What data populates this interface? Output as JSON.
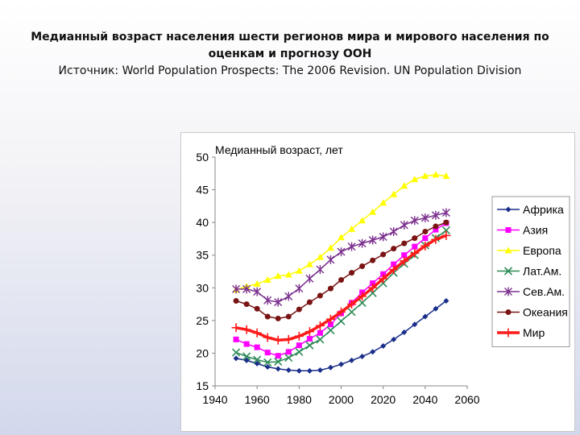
{
  "slide": {
    "title": "Медианный возраст населения шести регионов мира и мирового населения по оценкам и прогнозу ООН",
    "source": "Источник: World Population Prospects: The 2006 Revision. UN Population Division"
  },
  "chart_data": {
    "type": "line",
    "title": "Медианный возраст, лет",
    "xlabel": "",
    "ylabel": "",
    "xlim": [
      1940,
      2060
    ],
    "ylim": [
      15,
      50
    ],
    "xticks": [
      1940,
      1960,
      1980,
      2000,
      2020,
      2040,
      2060
    ],
    "yticks": [
      15,
      20,
      25,
      30,
      35,
      40,
      45,
      50
    ],
    "grid": false,
    "legend_position": "right",
    "x": [
      1950,
      1955,
      1960,
      1965,
      1970,
      1975,
      1980,
      1985,
      1990,
      1995,
      2000,
      2005,
      2010,
      2015,
      2020,
      2025,
      2030,
      2035,
      2040,
      2045,
      2050
    ],
    "series": [
      {
        "name": "Африка",
        "color": "#1a2e8a",
        "marker": "diamond",
        "values": [
          19.2,
          18.9,
          18.4,
          17.9,
          17.6,
          17.4,
          17.3,
          17.3,
          17.4,
          17.8,
          18.3,
          18.9,
          19.5,
          20.2,
          21.1,
          22.1,
          23.2,
          24.4,
          25.6,
          26.8,
          28.0
        ]
      },
      {
        "name": "Азия",
        "color": "#ff00ff",
        "marker": "square",
        "values": [
          22.1,
          21.4,
          20.9,
          20.1,
          19.6,
          20.2,
          21.2,
          22.2,
          23.1,
          24.4,
          26.1,
          27.7,
          29.3,
          30.7,
          32.1,
          33.6,
          35.0,
          36.3,
          37.6,
          38.9,
          39.9
        ]
      },
      {
        "name": "Европа",
        "color": "#ffff00",
        "marker": "triangle",
        "values": [
          29.7,
          30.2,
          30.6,
          31.2,
          31.8,
          32.0,
          32.6,
          33.6,
          34.7,
          36.1,
          37.7,
          39.0,
          40.3,
          41.6,
          43.0,
          44.3,
          45.6,
          46.6,
          47.1,
          47.3,
          47.1
        ]
      },
      {
        "name": "Лат.Ам.",
        "color": "#2e8b57",
        "marker": "x",
        "values": [
          20.1,
          19.5,
          19.0,
          18.6,
          18.7,
          19.3,
          20.2,
          21.2,
          22.1,
          23.5,
          24.9,
          26.3,
          27.7,
          29.2,
          30.7,
          32.3,
          33.7,
          35.0,
          36.5,
          37.6,
          38.8
        ]
      },
      {
        "name": "Сев.Ам.",
        "color": "#7b2f8e",
        "marker": "star",
        "values": [
          29.8,
          29.8,
          29.4,
          28.1,
          27.8,
          28.7,
          29.9,
          31.4,
          32.8,
          34.3,
          35.5,
          36.3,
          36.8,
          37.3,
          37.8,
          38.6,
          39.6,
          40.3,
          40.7,
          41.1,
          41.5
        ]
      },
      {
        "name": "Океания",
        "color": "#7a1414",
        "marker": "circle",
        "values": [
          28.0,
          27.5,
          26.8,
          25.6,
          25.3,
          25.6,
          26.7,
          27.8,
          28.8,
          29.9,
          31.2,
          32.3,
          33.3,
          34.2,
          35.1,
          36.0,
          36.8,
          37.6,
          38.6,
          39.4,
          40.0
        ]
      },
      {
        "name": "Мир",
        "color": "#ff1a1a",
        "marker": "plus",
        "values": [
          23.9,
          23.6,
          23.1,
          22.4,
          22.0,
          22.1,
          22.6,
          23.3,
          24.2,
          25.2,
          26.3,
          27.5,
          28.7,
          30.0,
          31.4,
          32.8,
          34.1,
          35.3,
          36.4,
          37.4,
          38.0
        ]
      }
    ]
  }
}
